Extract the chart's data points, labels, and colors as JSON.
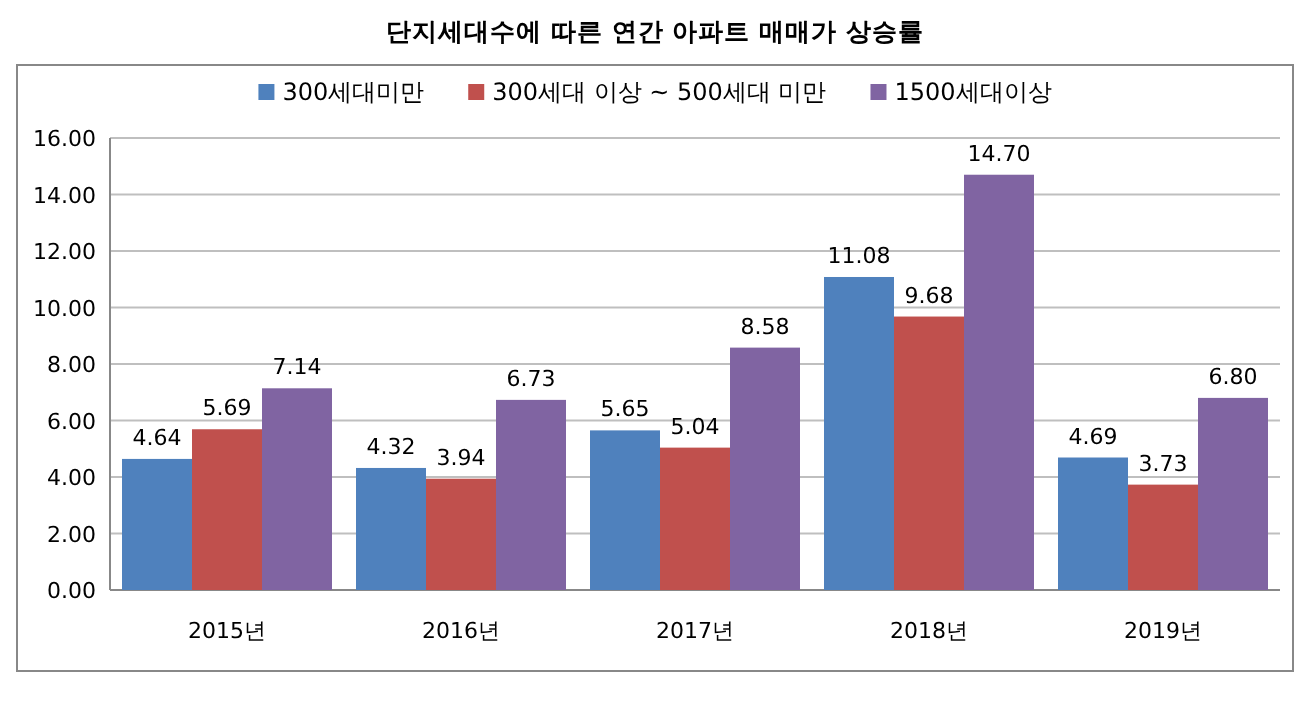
{
  "chart_data": {
    "type": "bar",
    "title": "단지세대수에 따른 연간 아파트 매매가 상승률",
    "categories": [
      "2015년",
      "2016년",
      "2017년",
      "2018년",
      "2019년"
    ],
    "series": [
      {
        "name": "300세대미만",
        "color": "#4f81bd",
        "values": [
          4.64,
          4.32,
          5.65,
          11.08,
          4.69
        ],
        "value_labels": [
          "4.64",
          "4.32",
          "5.65",
          "11.08",
          "4.69"
        ]
      },
      {
        "name": "300세대 이상 ~ 500세대 미만",
        "color": "#c0504d",
        "values": [
          5.69,
          3.94,
          5.04,
          9.68,
          3.73
        ],
        "value_labels": [
          "5.69",
          "3.94",
          "5.04",
          "9.68",
          "3.73"
        ]
      },
      {
        "name": "1500세대이상",
        "color": "#8064a2",
        "values": [
          7.14,
          6.73,
          8.58,
          14.7,
          6.8
        ],
        "value_labels": [
          "7.14",
          "6.73",
          "8.58",
          "14.70",
          "6.80"
        ]
      }
    ],
    "ylim": [
      0,
      16
    ],
    "yticks": [
      {
        "value": 0,
        "label": "0.00"
      },
      {
        "value": 2,
        "label": "2.00"
      },
      {
        "value": 4,
        "label": "4.00"
      },
      {
        "value": 6,
        "label": "6.00"
      },
      {
        "value": 8,
        "label": "8.00"
      },
      {
        "value": 10,
        "label": "10.00"
      },
      {
        "value": 12,
        "label": "12.00"
      },
      {
        "value": 14,
        "label": "14.00"
      },
      {
        "value": 16,
        "label": "16.00"
      }
    ],
    "grid": "y",
    "legend": "top"
  }
}
